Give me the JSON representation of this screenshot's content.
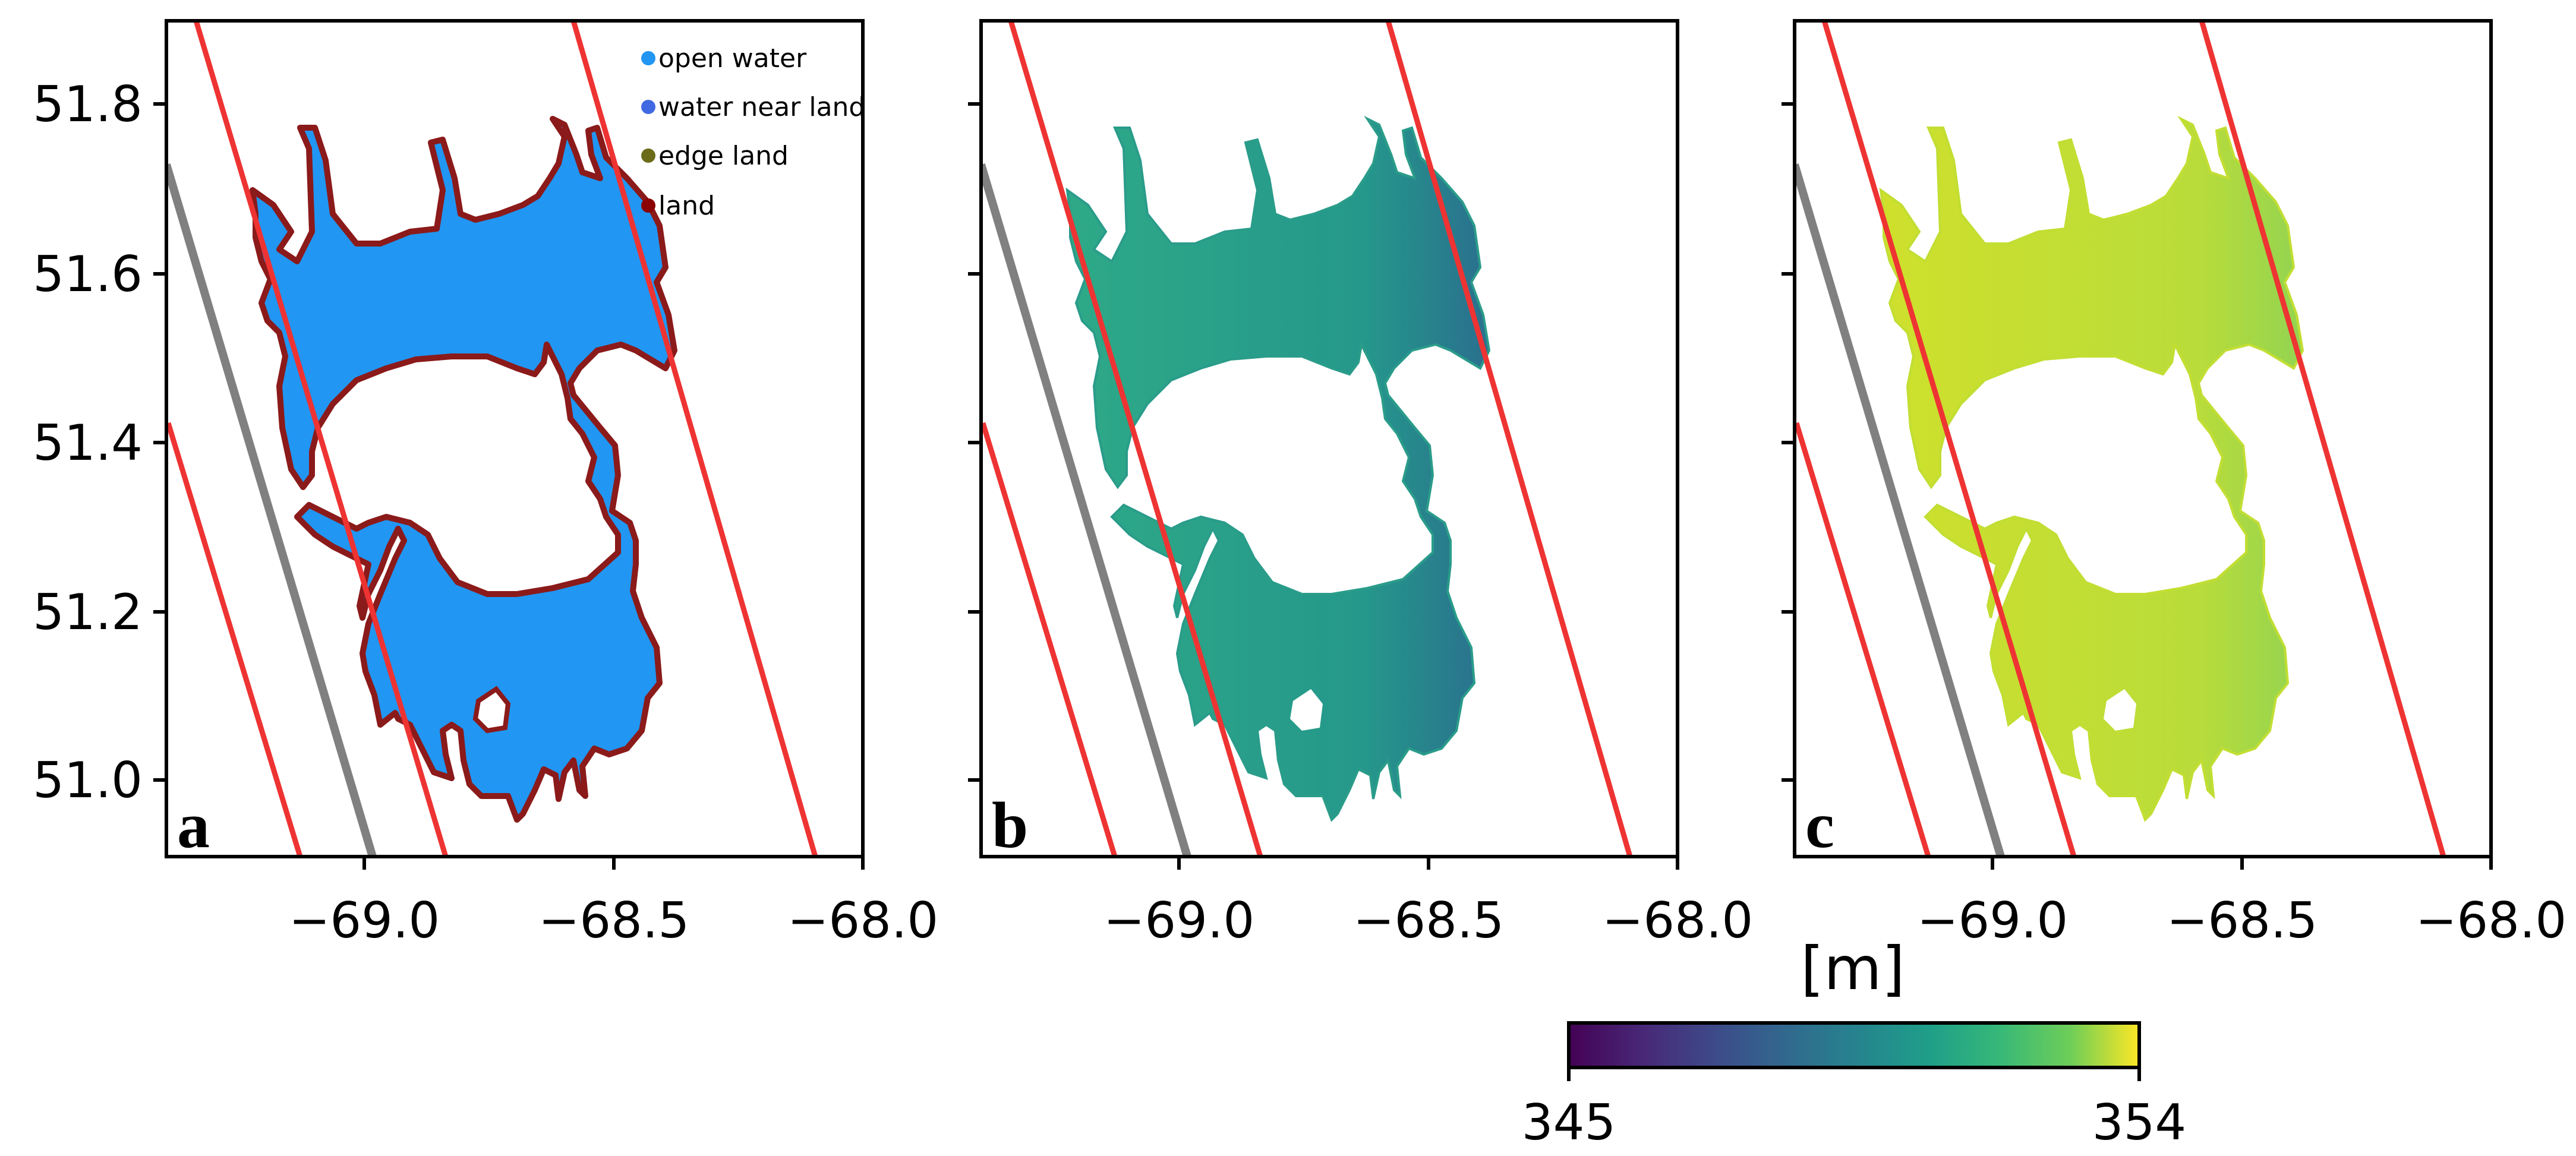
{
  "figure": {
    "panels": [
      {
        "id": "a",
        "label": "a",
        "type": "classification"
      },
      {
        "id": "b",
        "label": "b",
        "type": "elevation"
      },
      {
        "id": "c",
        "label": "c",
        "type": "elevation"
      }
    ]
  },
  "axes": {
    "x_ticks": [
      "−69.0",
      "−68.5",
      "−68.0"
    ],
    "y_ticks": [
      "51.8",
      "51.6",
      "51.4",
      "51.2",
      "51.0"
    ]
  },
  "legend": {
    "items": [
      {
        "label": "open water",
        "color": "#2196f3"
      },
      {
        "label": "water near land",
        "color": "#4169e1"
      },
      {
        "label": "edge land",
        "color": "#6b6b1a"
      },
      {
        "label": "land",
        "color": "#8b0000"
      }
    ]
  },
  "colorbar": {
    "title": "[m]",
    "min_label": "345",
    "max_label": "354",
    "min": 345,
    "max": 354,
    "colormap": "viridis"
  },
  "colors": {
    "track_red": "#ee3333",
    "track_gray": "#808080",
    "water_blue": "#2196f3",
    "land_edge": "#8b1a1a"
  }
}
